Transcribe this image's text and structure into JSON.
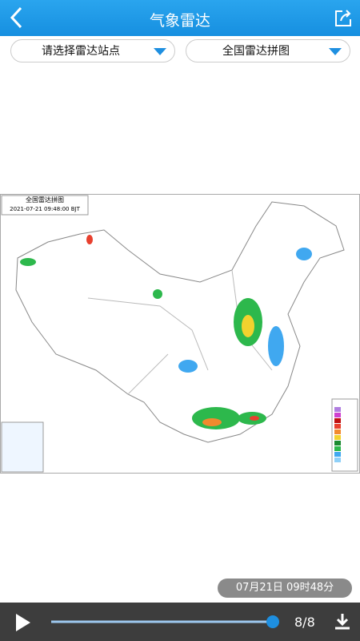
{
  "header": {
    "title": "气象雷达"
  },
  "selectors": {
    "station": "请选择雷达站点",
    "mosaic": "全国雷达拼图"
  },
  "map": {
    "title": "全国雷达拼图",
    "timestamp": "2021-07-21 09:48:00 BJT"
  },
  "frame_time": "07月21日 09时48分",
  "player": {
    "frame_counter": "8/8"
  }
}
